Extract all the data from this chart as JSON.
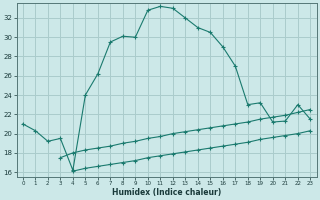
{
  "title": "",
  "xlabel": "Humidex (Indice chaleur)",
  "ylabel": "",
  "bg_color": "#cce8e8",
  "grid_color": "#aacccc",
  "line_color": "#1a7a6e",
  "xlim": [
    -0.5,
    23.5
  ],
  "ylim": [
    15.5,
    33.5
  ],
  "xticks": [
    0,
    1,
    2,
    3,
    4,
    5,
    6,
    7,
    8,
    9,
    10,
    11,
    12,
    13,
    14,
    15,
    16,
    17,
    18,
    19,
    20,
    21,
    22,
    23
  ],
  "yticks": [
    16,
    18,
    20,
    22,
    24,
    26,
    28,
    30,
    32
  ],
  "main_x": [
    0,
    1,
    2,
    3,
    4,
    5,
    6,
    7,
    8,
    9,
    10,
    11,
    12,
    13,
    14,
    15,
    16,
    17,
    18,
    19,
    20,
    21,
    22,
    23
  ],
  "main_y": [
    21.0,
    20.3,
    19.2,
    19.5,
    16.2,
    24.0,
    26.2,
    29.5,
    30.1,
    30.0,
    32.8,
    33.2,
    33.0,
    32.0,
    31.0,
    30.5,
    29.0,
    27.0,
    23.0,
    23.2,
    21.2,
    21.3,
    23.0,
    21.5
  ],
  "line1_x": [
    3,
    4,
    5,
    6,
    7,
    8,
    9,
    10,
    11,
    12,
    13,
    14,
    15,
    16,
    17,
    18,
    19,
    20,
    21,
    22,
    23
  ],
  "line1_y": [
    17.5,
    18.0,
    18.3,
    18.5,
    18.7,
    19.0,
    19.2,
    19.5,
    19.7,
    20.0,
    20.2,
    20.4,
    20.6,
    20.8,
    21.0,
    21.2,
    21.5,
    21.7,
    21.9,
    22.2,
    22.5
  ],
  "line2_x": [
    4,
    5,
    6,
    7,
    8,
    9,
    10,
    11,
    12,
    13,
    14,
    15,
    16,
    17,
    18,
    19,
    20,
    21,
    22,
    23
  ],
  "line2_y": [
    16.1,
    16.4,
    16.6,
    16.8,
    17.0,
    17.2,
    17.5,
    17.7,
    17.9,
    18.1,
    18.3,
    18.5,
    18.7,
    18.9,
    19.1,
    19.4,
    19.6,
    19.8,
    20.0,
    20.3
  ],
  "xtick_labels": [
    "0",
    "1",
    "2",
    "3",
    "4",
    "5",
    "6",
    "7",
    "8",
    "9",
    "10",
    "11",
    "12",
    "13",
    "14",
    "15",
    "16",
    "17",
    "18",
    "19",
    "20",
    "21",
    "22",
    "23"
  ],
  "ytick_labels": [
    "16",
    "18",
    "20",
    "22",
    "24",
    "26",
    "28",
    "30",
    "32"
  ]
}
